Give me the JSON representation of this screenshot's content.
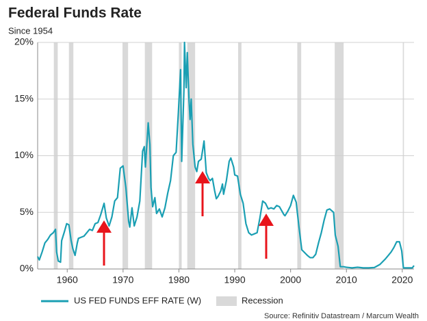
{
  "chart_data": {
    "type": "line",
    "title": "Federal Funds Rate",
    "subtitle": "Since 1954",
    "source": "Source: Refinitiv Datastream / Marcum Wealth",
    "x": [
      1954.7,
      1955.0,
      1955.5,
      1956,
      1956.5,
      1957,
      1957.5,
      1957.9,
      1958.1,
      1958.4,
      1958.8,
      1959,
      1959.5,
      1959.9,
      1960.3,
      1960.7,
      1961,
      1961.4,
      1961.8,
      1962,
      1962.5,
      1963,
      1963.5,
      1964,
      1964.5,
      1965,
      1965.5,
      1966,
      1966.6,
      1967,
      1967.5,
      1968,
      1968.5,
      1969,
      1969.5,
      1970,
      1970.5,
      1971,
      1971.2,
      1971.6,
      1972,
      1972.5,
      1973,
      1973.5,
      1973.8,
      1974,
      1974.5,
      1974.8,
      1975,
      1975.3,
      1975.7,
      1976,
      1976.5,
      1977,
      1977.5,
      1978,
      1978.5,
      1979,
      1979.5,
      1979.9,
      1980.3,
      1980.5,
      1980.9,
      1981.0,
      1981.3,
      1981.5,
      1981.8,
      1982.0,
      1982.2,
      1982.5,
      1982.9,
      1983.2,
      1983.5,
      1984,
      1984.5,
      1984.9,
      1985.3,
      1985.6,
      1986,
      1986.4,
      1986.7,
      1987,
      1987.5,
      1987.8,
      1988,
      1988.5,
      1989,
      1989.3,
      1989.8,
      1990,
      1990.5,
      1991,
      1991.5,
      1992,
      1992.5,
      1993,
      1993.5,
      1994,
      1994.5,
      1995,
      1995.5,
      1996,
      1996.5,
      1997,
      1997.5,
      1998,
      1998.8,
      1999,
      1999.5,
      2000,
      2000.5,
      2001,
      2001.5,
      2002,
      2003,
      2003.5,
      2004,
      2004.5,
      2005,
      2005.5,
      2006,
      2006.5,
      2007,
      2007.7,
      2008,
      2008.5,
      2008.9,
      2009.5,
      2010,
      2011,
      2012,
      2013,
      2014,
      2015,
      2016,
      2017,
      2017.5,
      2018,
      2018.5,
      2019,
      2019.5,
      2019.9,
      2020.2,
      2021,
      2021.8,
      2022.1
    ],
    "series": [
      {
        "name": "US FED FUNDS EFF RATE (W)",
        "color": "#1a9fb3",
        "values": [
          1.1,
          0.8,
          1.5,
          2.3,
          2.6,
          3.0,
          3.2,
          3.5,
          1.5,
          0.7,
          0.6,
          2.5,
          3.3,
          4.0,
          3.9,
          2.5,
          1.8,
          1.2,
          2.3,
          2.7,
          2.8,
          2.9,
          3.2,
          3.5,
          3.4,
          4.0,
          4.1,
          4.8,
          5.8,
          4.5,
          3.8,
          4.6,
          6.0,
          6.3,
          8.9,
          9.1,
          7.2,
          4.2,
          3.7,
          5.4,
          3.8,
          4.6,
          6.0,
          10.4,
          10.8,
          9.0,
          12.9,
          11.0,
          7.2,
          5.5,
          6.3,
          4.9,
          5.3,
          4.6,
          5.4,
          6.7,
          7.8,
          10.0,
          10.3,
          13.8,
          17.6,
          9.5,
          15.8,
          20.0,
          16.0,
          19.1,
          15.0,
          13.2,
          15.0,
          11.0,
          9.0,
          8.6,
          9.5,
          9.7,
          11.3,
          8.5,
          8.0,
          7.8,
          8.0,
          6.9,
          6.2,
          6.4,
          6.9,
          7.5,
          6.6,
          7.8,
          9.5,
          9.8,
          9.0,
          8.3,
          8.2,
          6.6,
          5.8,
          4.0,
          3.2,
          3.0,
          3.1,
          3.2,
          4.5,
          6.0,
          5.8,
          5.3,
          5.4,
          5.3,
          5.6,
          5.5,
          4.8,
          4.7,
          5.1,
          5.6,
          6.5,
          5.9,
          3.7,
          1.7,
          1.2,
          1.0,
          1.0,
          1.3,
          2.3,
          3.2,
          4.3,
          5.2,
          5.3,
          5.0,
          3.0,
          2.0,
          0.2,
          0.2,
          0.15,
          0.1,
          0.15,
          0.1,
          0.1,
          0.13,
          0.4,
          0.9,
          1.2,
          1.5,
          1.9,
          2.4,
          2.4,
          1.6,
          0.1,
          0.1,
          0.1,
          0.3
        ]
      }
    ],
    "recession_name": "Recession",
    "recession_color": "#d9d9d9",
    "recessions": [
      [
        1957.6,
        1958.3
      ],
      [
        1960.3,
        1961.1
      ],
      [
        1969.9,
        1970.9
      ],
      [
        1973.9,
        1975.2
      ],
      [
        1980.0,
        1980.5
      ],
      [
        1981.5,
        1982.9
      ],
      [
        1990.6,
        1991.2
      ],
      [
        2001.2,
        2001.9
      ],
      [
        2007.9,
        2009.5
      ],
      [
        2020.1,
        2020.3
      ]
    ],
    "xlim": [
      1954.7,
      2022.1
    ],
    "xticks": [
      1960,
      1970,
      1980,
      1990,
      2000,
      2010,
      2020
    ],
    "ylim": [
      0,
      20
    ],
    "yticks": [
      {
        "value": 0,
        "label": "0%"
      },
      {
        "value": 5,
        "label": "5%"
      },
      {
        "value": 10,
        "label": "10%"
      },
      {
        "value": 15,
        "label": "15%"
      },
      {
        "value": 20,
        "label": "20%"
      }
    ],
    "grid": true
  }
}
